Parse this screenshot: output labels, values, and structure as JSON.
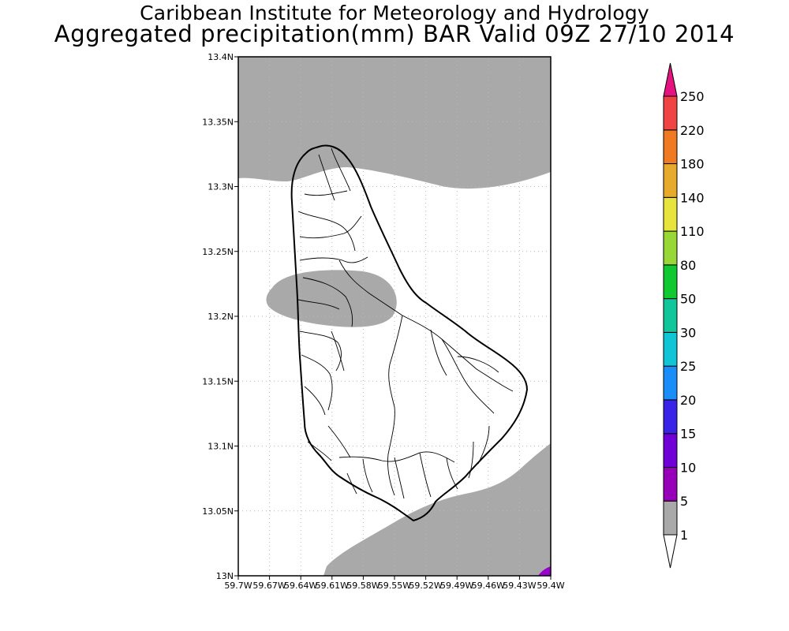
{
  "title": {
    "line1": "Caribbean Institute for Meteorology and Hydrology",
    "line2": "Aggregated precipitation(mm) BAR Valid 09Z 27/10 2014"
  },
  "map": {
    "lat_labels": [
      "13.4N",
      "13.35N",
      "13.3N",
      "13.25N",
      "13.2N",
      "13.15N",
      "13.1N",
      "13.05N",
      "13N"
    ],
    "lon_labels": [
      "59.7W",
      "59.67W",
      "59.64W",
      "59.61W",
      "59.58W",
      "59.55W",
      "59.52W",
      "59.49W",
      "59.46W",
      "59.43W",
      "59.4W"
    ],
    "lat_range": [
      13.0,
      13.4
    ],
    "lon_range": [
      -59.7,
      -59.4
    ],
    "grid": "dotted",
    "shade_color": "#a9a9a9",
    "heavy_color": "#9900cc"
  },
  "colorbar": {
    "labels": [
      "1",
      "5",
      "10",
      "15",
      "20",
      "25",
      "30",
      "50",
      "80",
      "110",
      "140",
      "180",
      "220",
      "250"
    ],
    "colors": [
      "#a9a9a9",
      "#9500b8",
      "#6f00d6",
      "#3a23e8",
      "#1a8ef8",
      "#10c6d6",
      "#10c69a",
      "#10c830",
      "#98d836",
      "#e8e43e",
      "#e6aa2c",
      "#f07a22",
      "#f04444",
      "#e4137f"
    ],
    "below_color": "#ffffff"
  }
}
